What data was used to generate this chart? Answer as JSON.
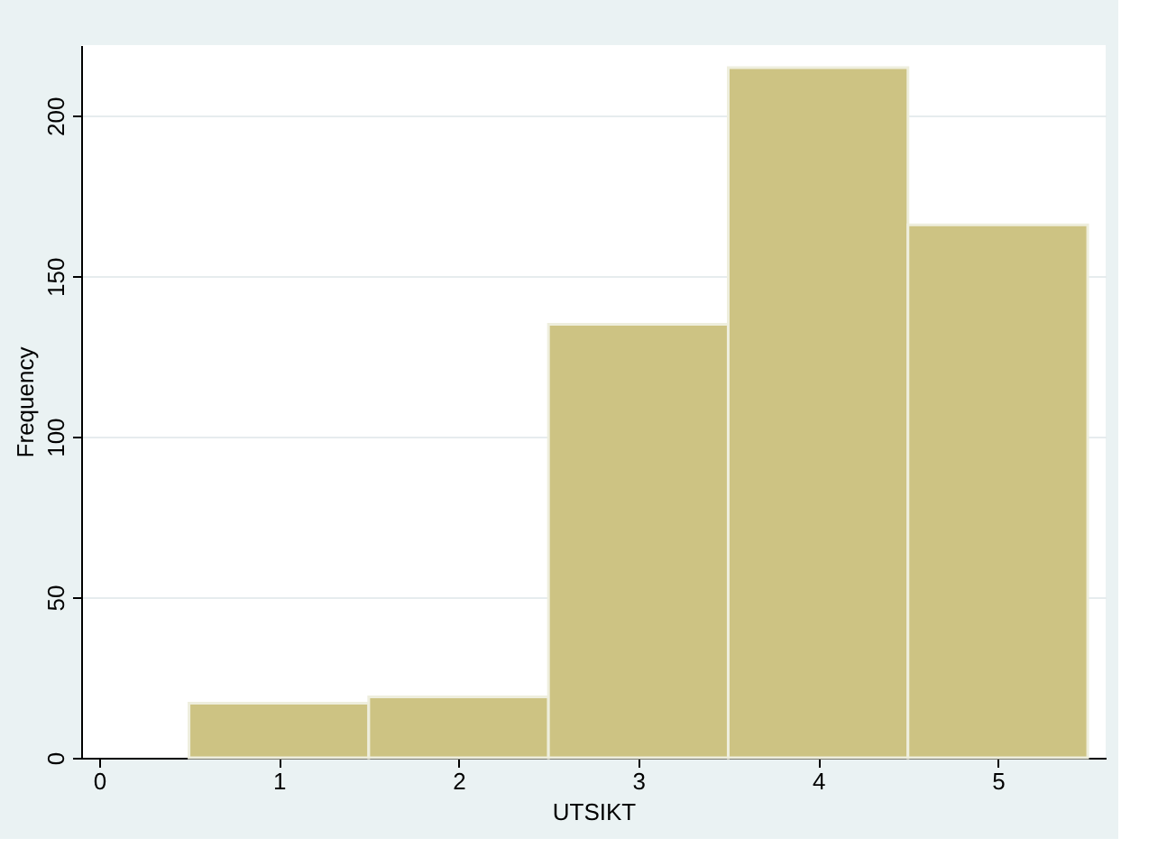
{
  "chart_data": {
    "type": "histogram",
    "xlabel": "UTSIKT",
    "ylabel": "Frequency",
    "bins": [
      0.5,
      1.5,
      2.5,
      3.5,
      4.5,
      5.5
    ],
    "values": [
      17,
      19,
      135,
      215,
      166
    ],
    "color": "#cdc383",
    "xlim": [
      -0.1,
      5.6
    ],
    "xticks": [
      0,
      1,
      2,
      3,
      4,
      5
    ],
    "ylim": [
      0,
      222
    ],
    "yticks": [
      0,
      50,
      100,
      150,
      200
    ],
    "grid": "y"
  }
}
